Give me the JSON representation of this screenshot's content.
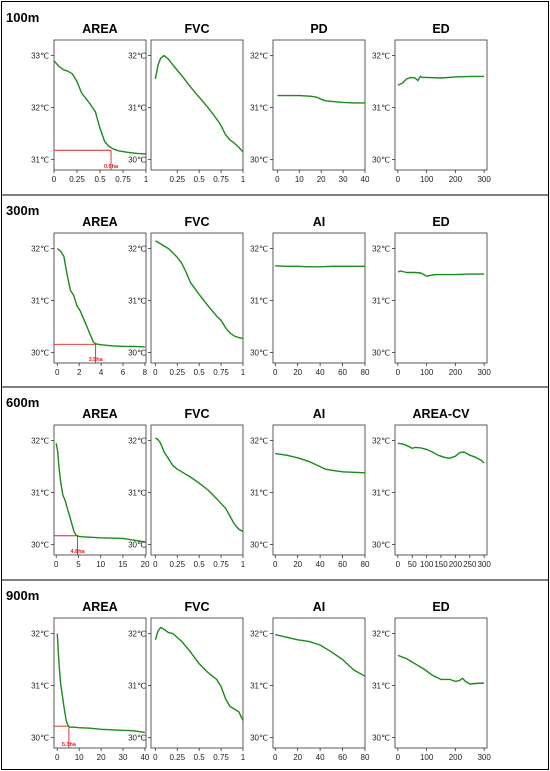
{
  "rows": [
    {
      "label": "100m"
    },
    {
      "label": "300m"
    },
    {
      "label": "600m"
    },
    {
      "label": "900m"
    }
  ],
  "chart_data": [
    {
      "type": "line",
      "row": 0,
      "title": "AREA",
      "x": [
        0,
        0.05,
        0.1,
        0.15,
        0.2,
        0.25,
        0.3,
        0.35,
        0.4,
        0.45,
        0.5,
        0.55,
        0.6,
        0.65,
        0.7,
        0.8,
        0.9,
        1.0
      ],
      "y": [
        32.9,
        32.8,
        32.73,
        32.7,
        32.65,
        32.5,
        32.28,
        32.17,
        32.05,
        31.92,
        31.6,
        31.35,
        31.25,
        31.2,
        31.17,
        31.14,
        31.12,
        31.11
      ],
      "xlim": [
        0,
        1
      ],
      "ylim": [
        30.8,
        33.3
      ],
      "xticks": [
        0,
        0.25,
        0.5,
        0.75,
        1
      ],
      "xtick_labels": [
        "0",
        "0.25",
        "0.5",
        "0.75",
        "1"
      ],
      "yticks": [
        31,
        32,
        33
      ],
      "ytick_labels": [
        "31℃",
        "32℃",
        "33℃"
      ],
      "threshold": {
        "x": 0.62,
        "y": 31.18,
        "label": "0.6ha"
      }
    },
    {
      "type": "line",
      "row": 0,
      "title": "FVC",
      "x": [
        0,
        0.03,
        0.06,
        0.1,
        0.15,
        0.2,
        0.3,
        0.4,
        0.5,
        0.6,
        0.7,
        0.75,
        0.8,
        0.85,
        0.9,
        0.95,
        1.0
      ],
      "y": [
        31.55,
        31.82,
        31.95,
        32.0,
        31.93,
        31.82,
        31.62,
        31.4,
        31.2,
        31.0,
        30.78,
        30.65,
        30.48,
        30.38,
        30.32,
        30.24,
        30.15
      ],
      "xlim": [
        -0.05,
        1.0
      ],
      "ylim": [
        29.8,
        32.3
      ],
      "xticks": [
        0.25,
        0.5,
        0.75,
        1
      ],
      "xtick_labels": [
        "0.25",
        "0.5",
        "0.75",
        "1"
      ],
      "yticks": [
        30,
        31,
        32
      ],
      "ytick_labels": [
        "30℃",
        "31℃",
        "32℃"
      ]
    },
    {
      "type": "line",
      "row": 0,
      "title": "PD",
      "x": [
        0,
        5,
        10,
        15,
        18,
        20,
        22,
        25,
        30,
        35,
        40
      ],
      "y": [
        31.23,
        31.23,
        31.23,
        31.22,
        31.2,
        31.16,
        31.13,
        31.12,
        31.1,
        31.09,
        31.09
      ],
      "xlim": [
        -2,
        40
      ],
      "ylim": [
        29.8,
        32.3
      ],
      "xticks": [
        0,
        10,
        20,
        30,
        40
      ],
      "xtick_labels": [
        "0",
        "10",
        "20",
        "30",
        "40"
      ],
      "yticks": [
        30,
        31,
        32
      ],
      "ytick_labels": [
        "30℃",
        "31℃",
        "32℃"
      ]
    },
    {
      "type": "line",
      "row": 0,
      "title": "ED",
      "x": [
        0,
        15,
        30,
        45,
        60,
        70,
        78,
        85,
        100,
        150,
        200,
        250,
        300
      ],
      "y": [
        31.43,
        31.47,
        31.55,
        31.58,
        31.57,
        31.52,
        31.6,
        31.58,
        31.58,
        31.57,
        31.59,
        31.6,
        31.6
      ],
      "xlim": [
        -10,
        310
      ],
      "ylim": [
        29.8,
        32.3
      ],
      "xticks": [
        0,
        100,
        200,
        300
      ],
      "xtick_labels": [
        "0",
        "100",
        "200",
        "300"
      ],
      "yticks": [
        30,
        31,
        32
      ],
      "ytick_labels": [
        "30℃",
        "31℃",
        "32℃"
      ]
    },
    {
      "type": "line",
      "row": 1,
      "title": "AREA",
      "x": [
        0,
        0.3,
        0.6,
        0.9,
        1.2,
        1.5,
        1.8,
        2.1,
        2.4,
        2.7,
        3.0,
        3.3,
        3.5,
        4.0,
        5.0,
        6.0,
        7.0,
        8.0
      ],
      "y": [
        32.0,
        31.95,
        31.85,
        31.5,
        31.2,
        31.1,
        30.9,
        30.8,
        30.65,
        30.5,
        30.35,
        30.2,
        30.17,
        30.15,
        30.13,
        30.12,
        30.12,
        30.11
      ],
      "xlim": [
        -0.3,
        8.1
      ],
      "ylim": [
        29.8,
        32.3
      ],
      "xticks": [
        0,
        2,
        4,
        6,
        8
      ],
      "xtick_labels": [
        "0",
        "2",
        "4",
        "6",
        "8"
      ],
      "yticks": [
        30,
        31,
        32
      ],
      "ytick_labels": [
        "30℃",
        "31℃",
        "32℃"
      ],
      "threshold": {
        "x": 3.5,
        "y": 30.16,
        "label": "3.5ha"
      }
    },
    {
      "type": "line",
      "row": 1,
      "title": "FVC",
      "x": [
        0,
        0.05,
        0.1,
        0.15,
        0.2,
        0.25,
        0.3,
        0.35,
        0.4,
        0.5,
        0.6,
        0.7,
        0.75,
        0.8,
        0.85,
        0.9,
        0.95,
        1.0
      ],
      "y": [
        32.15,
        32.1,
        32.05,
        32.0,
        31.92,
        31.83,
        31.72,
        31.55,
        31.35,
        31.12,
        30.9,
        30.7,
        30.62,
        30.48,
        30.38,
        30.32,
        30.29,
        30.27
      ],
      "xlim": [
        -0.05,
        1.0
      ],
      "ylim": [
        29.8,
        32.3
      ],
      "xticks": [
        0,
        0.25,
        0.5,
        0.75,
        1
      ],
      "xtick_labels": [
        "0",
        "0.25",
        "0.5",
        "0.75",
        "1"
      ],
      "yticks": [
        30,
        31,
        32
      ],
      "ytick_labels": [
        "30℃",
        "31℃",
        "32℃"
      ]
    },
    {
      "type": "line",
      "row": 1,
      "title": "AI",
      "x": [
        0,
        10,
        20,
        30,
        40,
        50,
        60,
        70,
        80
      ],
      "y": [
        31.67,
        31.66,
        31.66,
        31.65,
        31.65,
        31.66,
        31.66,
        31.66,
        31.66
      ],
      "xlim": [
        -2,
        80
      ],
      "ylim": [
        29.8,
        32.3
      ],
      "xticks": [
        0,
        20,
        40,
        60,
        80
      ],
      "xtick_labels": [
        "0",
        "20",
        "40",
        "60",
        "80"
      ],
      "yticks": [
        30,
        31,
        32
      ],
      "ytick_labels": [
        "30℃",
        "31℃",
        "32℃"
      ]
    },
    {
      "type": "line",
      "row": 1,
      "title": "ED",
      "x": [
        0,
        10,
        30,
        60,
        80,
        90,
        100,
        110,
        130,
        160,
        200,
        250,
        300
      ],
      "y": [
        31.55,
        31.57,
        31.54,
        31.54,
        31.53,
        31.5,
        31.47,
        31.48,
        31.5,
        31.5,
        31.5,
        31.51,
        31.51
      ],
      "xlim": [
        -10,
        310
      ],
      "ylim": [
        29.8,
        32.3
      ],
      "xticks": [
        0,
        100,
        200,
        300
      ],
      "xtick_labels": [
        "0",
        "100",
        "200",
        "300"
      ],
      "yticks": [
        30,
        31,
        32
      ],
      "ytick_labels": [
        "30℃",
        "31℃",
        "32℃"
      ]
    },
    {
      "type": "line",
      "row": 2,
      "title": "AREA",
      "x": [
        0,
        0.3,
        0.6,
        1.0,
        1.5,
        2.0,
        2.5,
        3.0,
        3.5,
        4.0,
        4.5,
        5.0,
        6.0,
        8.0,
        10.0,
        15.0,
        20.0
      ],
      "y": [
        31.95,
        31.8,
        31.5,
        31.2,
        30.95,
        30.85,
        30.7,
        30.55,
        30.4,
        30.25,
        30.18,
        30.16,
        30.15,
        30.14,
        30.13,
        30.12,
        30.05
      ],
      "xlim": [
        -0.5,
        20.2
      ],
      "ylim": [
        29.8,
        32.3
      ],
      "xticks": [
        0,
        5,
        10,
        15,
        20
      ],
      "xtick_labels": [
        "0",
        "5",
        "10",
        "15",
        "20"
      ],
      "yticks": [
        30,
        31,
        32
      ],
      "ytick_labels": [
        "30℃",
        "31℃",
        "32℃"
      ],
      "threshold": {
        "x": 4.8,
        "y": 30.17,
        "label": "4.8ha"
      }
    },
    {
      "type": "line",
      "row": 2,
      "title": "FVC",
      "x": [
        0,
        0.03,
        0.06,
        0.1,
        0.15,
        0.2,
        0.25,
        0.3,
        0.4,
        0.5,
        0.6,
        0.7,
        0.8,
        0.85,
        0.9,
        0.95,
        1.0
      ],
      "y": [
        32.05,
        32.02,
        31.95,
        31.78,
        31.65,
        31.52,
        31.45,
        31.4,
        31.3,
        31.18,
        31.05,
        30.88,
        30.7,
        30.55,
        30.4,
        30.3,
        30.25
      ],
      "xlim": [
        -0.05,
        1.0
      ],
      "ylim": [
        29.8,
        32.3
      ],
      "xticks": [
        0,
        0.25,
        0.5,
        0.75,
        1
      ],
      "xtick_labels": [
        "0",
        "0.25",
        "0.5",
        "0.75",
        "1"
      ],
      "yticks": [
        30,
        31,
        32
      ],
      "ytick_labels": [
        "30℃",
        "31℃",
        "32℃"
      ]
    },
    {
      "type": "line",
      "row": 2,
      "title": "AI",
      "x": [
        0,
        10,
        20,
        30,
        40,
        45,
        50,
        60,
        70,
        80
      ],
      "y": [
        31.75,
        31.72,
        31.67,
        31.6,
        31.5,
        31.45,
        31.43,
        31.4,
        31.39,
        31.38
      ],
      "xlim": [
        -2,
        80
      ],
      "ylim": [
        29.8,
        32.3
      ],
      "xticks": [
        0,
        20,
        40,
        60,
        80
      ],
      "xtick_labels": [
        "0",
        "20",
        "40",
        "60",
        "80"
      ],
      "yticks": [
        30,
        31,
        32
      ],
      "ytick_labels": [
        "30℃",
        "31℃",
        "32℃"
      ]
    },
    {
      "type": "line",
      "row": 2,
      "title": "AREA-CV",
      "x": [
        0,
        20,
        40,
        50,
        60,
        80,
        100,
        120,
        140,
        160,
        180,
        200,
        215,
        230,
        250,
        270,
        290,
        300
      ],
      "y": [
        31.95,
        31.93,
        31.88,
        31.85,
        31.87,
        31.86,
        31.83,
        31.78,
        31.72,
        31.68,
        31.66,
        31.7,
        31.77,
        31.78,
        31.72,
        31.68,
        31.62,
        31.57
      ],
      "xlim": [
        -10,
        310
      ],
      "ylim": [
        29.8,
        32.3
      ],
      "xticks": [
        0,
        50,
        100,
        150,
        200,
        250,
        300
      ],
      "xtick_labels": [
        "0",
        "50",
        "100",
        "150",
        "200",
        "250",
        "300"
      ],
      "yticks": [
        30,
        31,
        32
      ],
      "ytick_labels": [
        "30℃",
        "31℃",
        "32℃"
      ]
    },
    {
      "type": "line",
      "row": 3,
      "title": "AREA",
      "x": [
        0,
        0.5,
        1.0,
        1.5,
        2.0,
        2.5,
        3.0,
        3.5,
        4.0,
        4.5,
        5.0,
        5.5,
        6.0,
        8.0,
        10.0,
        15.0,
        20.0,
        25.0,
        30.0,
        35.0,
        40.0
      ],
      "y": [
        32.0,
        31.6,
        31.3,
        31.05,
        30.9,
        30.75,
        30.6,
        30.47,
        30.35,
        30.27,
        30.23,
        30.21,
        30.2,
        30.2,
        30.19,
        30.18,
        30.16,
        30.15,
        30.14,
        30.13,
        30.1
      ],
      "xlim": [
        -1.5,
        40.5
      ],
      "ylim": [
        29.8,
        32.3
      ],
      "xticks": [
        0,
        10,
        20,
        30,
        40
      ],
      "xtick_labels": [
        "0",
        "10",
        "20",
        "30",
        "40"
      ],
      "yticks": [
        30,
        31,
        32
      ],
      "ytick_labels": [
        "30℃",
        "31℃",
        "32℃"
      ],
      "threshold": {
        "x": 5.3,
        "y": 30.22,
        "label": "5.3ha"
      }
    },
    {
      "type": "line",
      "row": 3,
      "title": "FVC",
      "x": [
        0,
        0.03,
        0.06,
        0.1,
        0.15,
        0.2,
        0.3,
        0.4,
        0.5,
        0.6,
        0.7,
        0.75,
        0.8,
        0.85,
        0.9,
        0.95,
        1.0
      ],
      "y": [
        31.88,
        32.05,
        32.12,
        32.08,
        32.02,
        32.0,
        31.85,
        31.65,
        31.42,
        31.25,
        31.12,
        30.98,
        30.75,
        30.6,
        30.55,
        30.5,
        30.33
      ],
      "xlim": [
        -0.05,
        1.0
      ],
      "ylim": [
        29.8,
        32.3
      ],
      "xticks": [
        0,
        0.25,
        0.5,
        0.75,
        1
      ],
      "xtick_labels": [
        "0",
        "0.25",
        "0.5",
        "0.75",
        "1"
      ],
      "yticks": [
        30,
        31,
        32
      ],
      "ytick_labels": [
        "30℃",
        "31℃",
        "32℃"
      ]
    },
    {
      "type": "line",
      "row": 3,
      "title": "AI",
      "x": [
        0,
        10,
        20,
        30,
        40,
        50,
        60,
        70,
        80
      ],
      "y": [
        31.98,
        31.93,
        31.88,
        31.85,
        31.78,
        31.65,
        31.5,
        31.3,
        31.18
      ],
      "xlim": [
        -2,
        80
      ],
      "ylim": [
        29.8,
        32.3
      ],
      "xticks": [
        0,
        20,
        40,
        60,
        80
      ],
      "xtick_labels": [
        "0",
        "20",
        "40",
        "60",
        "80"
      ],
      "yticks": [
        30,
        31,
        32
      ],
      "ytick_labels": [
        "30℃",
        "31℃",
        "32℃"
      ]
    },
    {
      "type": "line",
      "row": 3,
      "title": "ED",
      "x": [
        0,
        30,
        60,
        90,
        120,
        150,
        180,
        200,
        215,
        225,
        235,
        250,
        270,
        300
      ],
      "y": [
        31.58,
        31.52,
        31.42,
        31.32,
        31.2,
        31.12,
        31.12,
        31.08,
        31.1,
        31.14,
        31.08,
        31.03,
        31.04,
        31.05
      ],
      "xlim": [
        -10,
        310
      ],
      "ylim": [
        29.8,
        32.3
      ],
      "xticks": [
        0,
        100,
        200,
        300
      ],
      "xtick_labels": [
        "0",
        "100",
        "200",
        "300"
      ],
      "yticks": [
        30,
        31,
        32
      ],
      "ytick_labels": [
        "30℃",
        "31℃",
        "32℃"
      ]
    }
  ]
}
